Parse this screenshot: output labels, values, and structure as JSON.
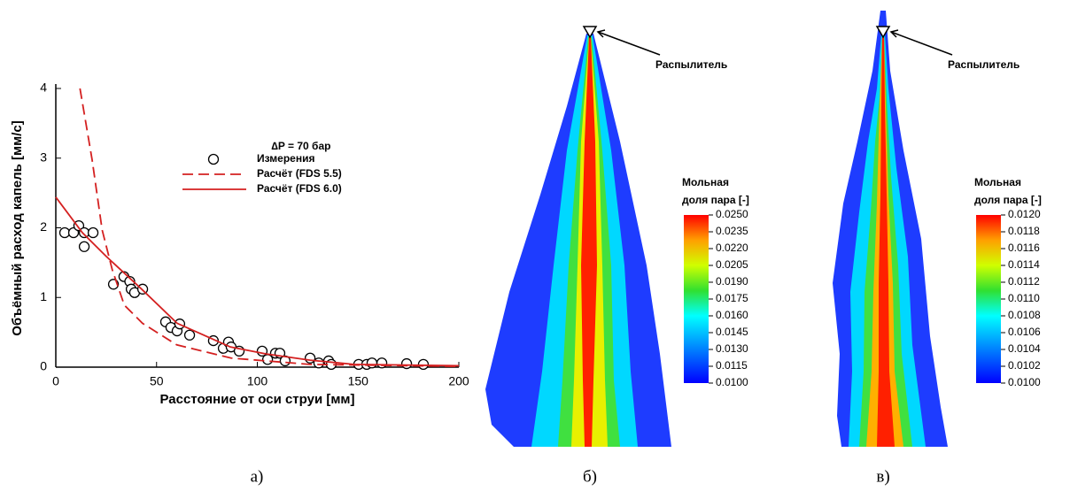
{
  "chart_data": [
    {
      "type": "line",
      "xlabel": "Расстояние от оси струи [мм]",
      "ylabel": "Объёмный расход капель [мм/с]",
      "legend_title": "∆P = 70 бар",
      "xlim": [
        0,
        200
      ],
      "ylim": [
        0,
        4
      ],
      "xticks": [
        0,
        50,
        100,
        150,
        200
      ],
      "yticks": [
        0,
        1,
        2,
        3,
        4
      ],
      "caption": "а)",
      "series": [
        {
          "name": "Измерения",
          "style": "markers",
          "color": "#000000",
          "x": [
            4.4,
            8.8,
            11.4,
            14.1,
            14.1,
            18.5,
            28.6,
            33.8,
            36.7,
            37.4,
            39.1,
            43.1,
            54.5,
            57.1,
            60.2,
            61.5,
            66.4,
            78.2,
            83.1,
            85.7,
            87.0,
            91.0,
            102.4,
            105.1,
            109.0,
            111.2,
            113.8,
            126.2,
            130.5,
            135.4,
            136.7,
            150.3,
            154.3,
            156.9,
            161.8,
            174.1,
            182.4
          ],
          "values": [
            1.93,
            1.93,
            2.03,
            1.93,
            1.73,
            1.93,
            1.19,
            1.3,
            1.23,
            1.12,
            1.07,
            1.12,
            0.65,
            0.57,
            0.52,
            0.62,
            0.46,
            0.38,
            0.27,
            0.36,
            0.29,
            0.23,
            0.23,
            0.11,
            0.2,
            0.2,
            0.09,
            0.13,
            0.06,
            0.09,
            0.04,
            0.04,
            0.04,
            0.06,
            0.06,
            0.05,
            0.04
          ]
        },
        {
          "name": "Расчёт (FDS 5.5)",
          "style": "dashed",
          "color": "#d42020",
          "x": [
            12,
            18,
            23,
            28,
            34,
            43,
            60,
            87,
            126,
            200
          ],
          "values": [
            4.0,
            2.98,
            1.97,
            1.4,
            0.89,
            0.63,
            0.32,
            0.13,
            0.04,
            0.01
          ]
        },
        {
          "name": "Расчёт (FDS 6.0)",
          "style": "solid",
          "color": "#d42020",
          "x": [
            0,
            13.2,
            25,
            42.6,
            60.2,
            86.6,
            104.2,
            126.2,
            148,
            200
          ],
          "values": [
            2.44,
            1.93,
            1.59,
            1.12,
            0.63,
            0.29,
            0.19,
            0.1,
            0.04,
            0.02
          ]
        }
      ]
    },
    {
      "type": "contour",
      "caption": "б)",
      "annotation": "Распылитель",
      "colorbar_title": [
        "Мольная",
        "доля пара [-]"
      ],
      "clim": [
        0.01,
        0.025
      ],
      "ticks": [
        {
          "value": 0.025,
          "label": "0.0250"
        },
        0.0235,
        {
          "value": 0.022,
          "label": "0.0220"
        },
        0.0205,
        {
          "value": 0.019,
          "label": "0.0190"
        },
        0.0175,
        {
          "value": 0.016,
          "label": "0.0160"
        },
        0.0145,
        {
          "value": 0.013,
          "label": "0.0130"
        },
        0.0115,
        {
          "value": 0.01,
          "label": "0.0100"
        }
      ]
    },
    {
      "type": "contour",
      "caption": "в)",
      "annotation": "Распылитель",
      "colorbar_title": [
        "Мольная",
        "доля пара [-]"
      ],
      "clim": [
        0.01,
        0.012
      ],
      "ticks": [
        {
          "value": 0.012,
          "label": "0.0120"
        },
        0.0118,
        0.0116,
        0.0114,
        0.0112,
        {
          "value": 0.011,
          "label": "0.0110"
        },
        0.0108,
        0.0106,
        0.0104,
        0.0102,
        {
          "value": 0.01,
          "label": "0.0100"
        }
      ]
    }
  ]
}
